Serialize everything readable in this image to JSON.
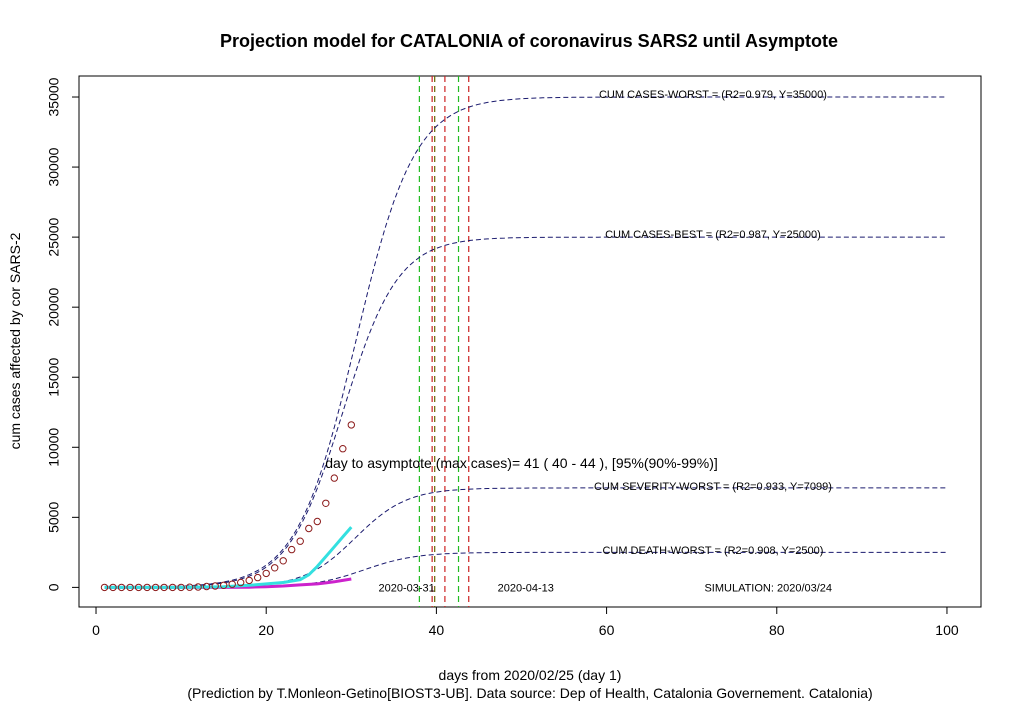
{
  "chart_data": {
    "type": "line",
    "title": "Projection model for CATALONIA of coronavirus SARS2 until Asymptote",
    "xlabel": "days from 2020/02/25 (day 1)",
    "ylabel": "cum cases affected by cor SARS-2",
    "caption": "(Prediction by T.Monleon-Getino[BIOST3-UB]. Data source: Dep of Health, Catalonia Governement. Catalonia)",
    "xlim": [
      -2,
      104
    ],
    "ylim": [
      -1400,
      36500
    ],
    "xticks": [
      0,
      20,
      40,
      60,
      80,
      100
    ],
    "yticks": [
      0,
      5000,
      10000,
      15000,
      20000,
      25000,
      30000,
      35000
    ],
    "grid": false,
    "series": [
      {
        "name": "CUM CASES-WORST",
        "style": "dashed-curve",
        "color": "#1a1a6e",
        "asymptote": 35000,
        "midpoint": 30.5,
        "rate": 0.29
      },
      {
        "name": "CUM CASES-BEST",
        "style": "dashed-curve",
        "color": "#1a1a6e",
        "asymptote": 25000,
        "midpoint": 29.0,
        "rate": 0.31
      },
      {
        "name": "CUM SEVERITY-WORST",
        "style": "dashed-curve",
        "color": "#1a1a6e",
        "asymptote": 7099,
        "midpoint": 30.5,
        "rate": 0.33
      },
      {
        "name": "CUM DEATH-WORST",
        "style": "dashed-curve",
        "color": "#1a1a6e",
        "asymptote": 2500,
        "midpoint": 31.5,
        "rate": 0.33
      }
    ],
    "observed_cases": {
      "color": "#8b1a1a",
      "x": [
        1,
        2,
        3,
        4,
        5,
        6,
        7,
        8,
        9,
        10,
        11,
        12,
        13,
        14,
        15,
        16,
        17,
        18,
        19,
        20,
        21,
        22,
        23,
        24,
        25,
        26,
        27,
        28,
        29,
        30
      ],
      "y": [
        0,
        0,
        0,
        0,
        0,
        0,
        0,
        0,
        0,
        0,
        10,
        30,
        60,
        100,
        150,
        230,
        350,
        500,
        700,
        1000,
        1400,
        1900,
        2700,
        3300,
        4200,
        4700,
        6000,
        7800,
        9900,
        11600
      ]
    },
    "cyan_curve": {
      "color": "#33e0e0",
      "x": [
        1,
        5,
        10,
        15,
        18,
        20,
        22,
        24,
        25,
        26,
        27,
        28,
        29,
        30
      ],
      "y": [
        0,
        0,
        0,
        50,
        150,
        250,
        350,
        550,
        900,
        1500,
        2200,
        2900,
        3600,
        4300
      ]
    },
    "magenta_curve": {
      "color": "#cc22cc",
      "x": [
        1,
        5,
        10,
        15,
        18,
        20,
        22,
        24,
        26,
        27,
        28,
        29,
        30
      ],
      "y": [
        0,
        0,
        0,
        0,
        10,
        50,
        100,
        180,
        250,
        320,
        400,
        500,
        600
      ]
    },
    "vertical_lines": [
      {
        "x": 38.0,
        "color": "#22bb22"
      },
      {
        "x": 39.5,
        "color": "#cc2222"
      },
      {
        "x": 39.8,
        "color": "#666600"
      },
      {
        "x": 41.0,
        "color": "#cc2222"
      },
      {
        "x": 42.6,
        "color": "#22bb22"
      },
      {
        "x": 43.8,
        "color": "#cc2222"
      }
    ],
    "annotations": [
      {
        "text": "CUM CASES-WORST = (R2=0.979, Y=35000)",
        "x": 72.5,
        "y": 35150
      },
      {
        "text": "CUM CASES-BEST = (R2=0.987, Y=25000)",
        "x": 72.5,
        "y": 25150
      },
      {
        "text": "CUM SEVERITY-WORST = (R2=0.933, Y=7099)",
        "x": 72.5,
        "y": 7150
      },
      {
        "text": "CUM DEATH-WORST = (R2=0.908, Y=2500)",
        "x": 72.5,
        "y": 2600
      },
      {
        "text": "day to asymptote (max cases)= 41 ( 40 - 44 ), [95%(90%-99%)]",
        "x": 50,
        "y": 8800,
        "big": true
      },
      {
        "text": "2020-03-31",
        "x": 36.5,
        "y": -100
      },
      {
        "text": "2020-04-13",
        "x": 50.5,
        "y": -100
      },
      {
        "text": "SIMULATION: 2020/03/24",
        "x": 79,
        "y": -100
      }
    ]
  }
}
